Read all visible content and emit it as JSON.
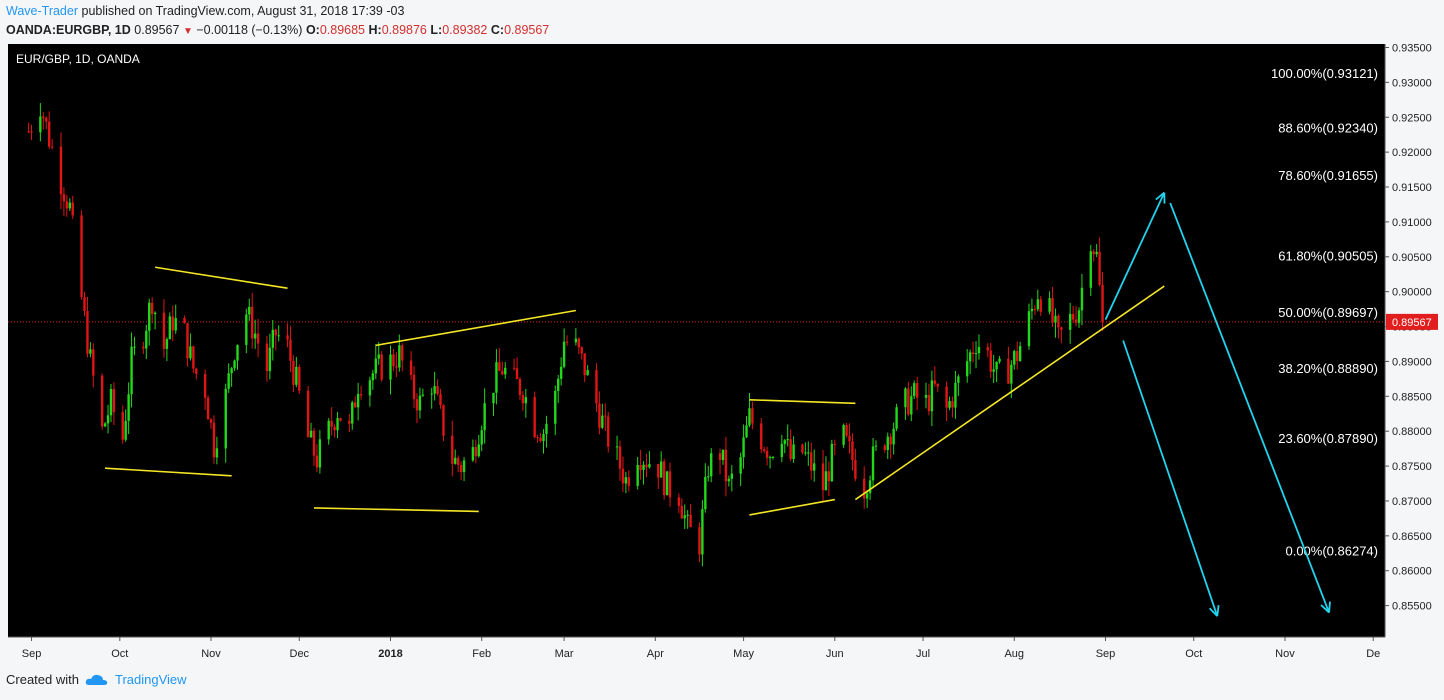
{
  "header": {
    "author": "Wave-Trader",
    "published": "published on TradingView.com, August 31, 2018 17:39 -03",
    "symbol": "OANDA:EURGBP, 1D",
    "price": "0.89567",
    "change": "−0.00118 (−0.13%)",
    "o_label": "O:",
    "o_value": "0.89685",
    "h_label": "H:",
    "h_value": "0.89876",
    "l_label": "L:",
    "l_value": "0.89382",
    "c_label": "C:",
    "c_value": "0.89567"
  },
  "chart_symbol": "EUR/GBP, 1D, OANDA",
  "footer": {
    "created_with": "Created with",
    "brand": "TradingView"
  },
  "colors": {
    "background": "#000000",
    "up": "#22d81a",
    "down": "#e01515",
    "trendline": "#f5e625",
    "arrow": "#22d3ee",
    "last_price_line": "#d62020",
    "last_price_badge": "#e11d1d",
    "axis_bg": "#f4f6f8"
  },
  "chart_data": {
    "type": "candlestick",
    "title": "EUR/GBP, 1D, OANDA",
    "ylim": [
      0.8505,
      0.9355
    ],
    "last_price": 0.89567,
    "y_ticks": [
      "0.93500",
      "0.93000",
      "0.92500",
      "0.92000",
      "0.91500",
      "0.91000",
      "0.90500",
      "0.90000",
      "0.89500",
      "0.89000",
      "0.88500",
      "0.88000",
      "0.87500",
      "0.87000",
      "0.86500",
      "0.86000",
      "0.85500"
    ],
    "x_ticks": [
      "Sep",
      "Oct",
      "Nov",
      "Dec",
      "2018",
      "Feb",
      "Mar",
      "Apr",
      "May",
      "Jun",
      "Jul",
      "Aug",
      "Sep",
      "Oct",
      "Nov",
      "De"
    ],
    "fib_levels": [
      {
        "label": "100.00%(0.93121)",
        "value": 0.93121
      },
      {
        "label": "88.60%(0.92340)",
        "value": 0.9234
      },
      {
        "label": "78.60%(0.91655)",
        "value": 0.91655
      },
      {
        "label": "61.80%(0.90505)",
        "value": 0.90505
      },
      {
        "label": "50.00%(0.89697)",
        "value": 0.89697
      },
      {
        "label": "38.20%(0.88890)",
        "value": 0.8889
      },
      {
        "label": "23.60%(0.87890)",
        "value": 0.8789
      },
      {
        "label": "0.00%(0.86274)",
        "value": 0.86274
      }
    ],
    "price_path": [
      [
        "2017-08-31",
        0.923
      ],
      [
        "2017-09-04",
        0.927
      ],
      [
        "2017-09-07",
        0.922
      ],
      [
        "2017-09-11",
        0.916
      ],
      [
        "2017-09-14",
        0.912
      ],
      [
        "2017-09-18",
        0.899
      ],
      [
        "2017-09-21",
        0.89
      ],
      [
        "2017-09-25",
        0.88
      ],
      [
        "2017-09-28",
        0.884
      ],
      [
        "2017-10-02",
        0.879
      ],
      [
        "2017-10-05",
        0.89
      ],
      [
        "2017-10-09",
        0.894
      ],
      [
        "2017-10-12",
        0.899
      ],
      [
        "2017-10-16",
        0.892
      ],
      [
        "2017-10-19",
        0.896
      ],
      [
        "2017-10-23",
        0.894
      ],
      [
        "2017-10-26",
        0.889
      ],
      [
        "2017-10-30",
        0.886
      ],
      [
        "2017-11-02",
        0.878
      ],
      [
        "2017-11-06",
        0.885
      ],
      [
        "2017-11-09",
        0.892
      ],
      [
        "2017-11-13",
        0.897
      ],
      [
        "2017-11-16",
        0.894
      ],
      [
        "2017-11-20",
        0.889
      ],
      [
        "2017-11-23",
        0.894
      ],
      [
        "2017-11-27",
        0.892
      ],
      [
        "2017-11-30",
        0.887
      ],
      [
        "2017-12-04",
        0.879
      ],
      [
        "2017-12-07",
        0.876
      ],
      [
        "2017-12-11",
        0.88
      ],
      [
        "2017-12-14",
        0.883
      ],
      [
        "2017-12-18",
        0.88
      ],
      [
        "2017-12-21",
        0.887
      ],
      [
        "2017-12-25",
        0.888
      ],
      [
        "2017-12-28",
        0.889
      ],
      [
        "2018-01-01",
        0.89
      ],
      [
        "2018-01-04",
        0.891
      ],
      [
        "2018-01-08",
        0.886
      ],
      [
        "2018-01-11",
        0.884
      ],
      [
        "2018-01-15",
        0.887
      ],
      [
        "2018-01-18",
        0.882
      ],
      [
        "2018-01-22",
        0.876
      ],
      [
        "2018-01-25",
        0.875
      ],
      [
        "2018-01-29",
        0.877
      ],
      [
        "2018-02-01",
        0.882
      ],
      [
        "2018-02-05",
        0.887
      ],
      [
        "2018-02-08",
        0.889
      ],
      [
        "2018-02-12",
        0.887
      ],
      [
        "2018-02-15",
        0.886
      ],
      [
        "2018-02-19",
        0.881
      ],
      [
        "2018-02-22",
        0.88
      ],
      [
        "2018-02-26",
        0.885
      ],
      [
        "2018-03-01",
        0.893
      ],
      [
        "2018-03-05",
        0.892
      ],
      [
        "2018-03-08",
        0.889
      ],
      [
        "2018-03-12",
        0.884
      ],
      [
        "2018-03-15",
        0.88
      ],
      [
        "2018-03-19",
        0.876
      ],
      [
        "2018-03-22",
        0.873
      ],
      [
        "2018-03-26",
        0.877
      ],
      [
        "2018-03-29",
        0.876
      ],
      [
        "2018-04-02",
        0.875
      ],
      [
        "2018-04-05",
        0.872
      ],
      [
        "2018-04-09",
        0.871
      ],
      [
        "2018-04-12",
        0.866
      ],
      [
        "2018-04-16",
        0.864
      ],
      [
        "2018-04-19",
        0.875
      ],
      [
        "2018-04-23",
        0.877
      ],
      [
        "2018-04-26",
        0.872
      ],
      [
        "2018-04-30",
        0.876
      ],
      [
        "2018-05-03",
        0.882
      ],
      [
        "2018-05-07",
        0.879
      ],
      [
        "2018-05-10",
        0.877
      ],
      [
        "2018-05-14",
        0.88
      ],
      [
        "2018-05-17",
        0.876
      ],
      [
        "2018-05-21",
        0.877
      ],
      [
        "2018-05-24",
        0.875
      ],
      [
        "2018-05-28",
        0.872
      ],
      [
        "2018-05-31",
        0.876
      ],
      [
        "2018-06-04",
        0.879
      ],
      [
        "2018-06-07",
        0.876
      ],
      [
        "2018-06-11",
        0.872
      ],
      [
        "2018-06-14",
        0.876
      ],
      [
        "2018-06-18",
        0.879
      ],
      [
        "2018-06-21",
        0.881
      ],
      [
        "2018-06-25",
        0.884
      ],
      [
        "2018-06-28",
        0.885
      ],
      [
        "2018-07-02",
        0.884
      ],
      [
        "2018-07-05",
        0.886
      ],
      [
        "2018-07-09",
        0.883
      ],
      [
        "2018-07-12",
        0.886
      ],
      [
        "2018-07-16",
        0.89
      ],
      [
        "2018-07-19",
        0.893
      ],
      [
        "2018-07-23",
        0.891
      ],
      [
        "2018-07-26",
        0.888
      ],
      [
        "2018-07-30",
        0.889
      ],
      [
        "2018-08-02",
        0.891
      ],
      [
        "2018-08-06",
        0.896
      ],
      [
        "2018-08-09",
        0.9
      ],
      [
        "2018-08-13",
        0.897
      ],
      [
        "2018-08-16",
        0.893
      ],
      [
        "2018-08-20",
        0.896
      ],
      [
        "2018-08-23",
        0.898
      ],
      [
        "2018-08-27",
        0.908
      ],
      [
        "2018-08-29",
        0.905
      ],
      [
        "2018-08-31",
        0.89567
      ]
    ],
    "trendlines": [
      {
        "from": [
          "2017-10-13",
          0.9035
        ],
        "to": [
          "2017-11-27",
          0.9005
        ]
      },
      {
        "from": [
          "2017-09-26",
          0.8747
        ],
        "to": [
          "2017-11-08",
          0.8736
        ]
      },
      {
        "from": [
          "2017-12-27",
          0.8923
        ],
        "to": [
          "2018-03-05",
          0.8973
        ]
      },
      {
        "from": [
          "2017-12-06",
          0.869
        ],
        "to": [
          "2018-01-31",
          0.8685
        ]
      },
      {
        "from": [
          "2018-05-03",
          0.8845
        ],
        "to": [
          "2018-06-08",
          0.884
        ]
      },
      {
        "from": [
          "2018-05-03",
          0.868
        ],
        "to": [
          "2018-06-01",
          0.8702
        ]
      },
      {
        "from": [
          "2018-06-08",
          0.8702
        ],
        "to": [
          "2018-09-21",
          0.9008
        ]
      }
    ],
    "arrows": [
      {
        "from": [
          "2018-09-01",
          0.896
        ],
        "to": [
          "2018-09-21",
          0.9142
        ]
      },
      {
        "from": [
          "2018-09-07",
          0.893
        ],
        "to": [
          "2018-10-09",
          0.8535
        ]
      },
      {
        "from": [
          "2018-09-23",
          0.9127
        ],
        "to": [
          "2018-11-16",
          0.854
        ]
      }
    ]
  }
}
